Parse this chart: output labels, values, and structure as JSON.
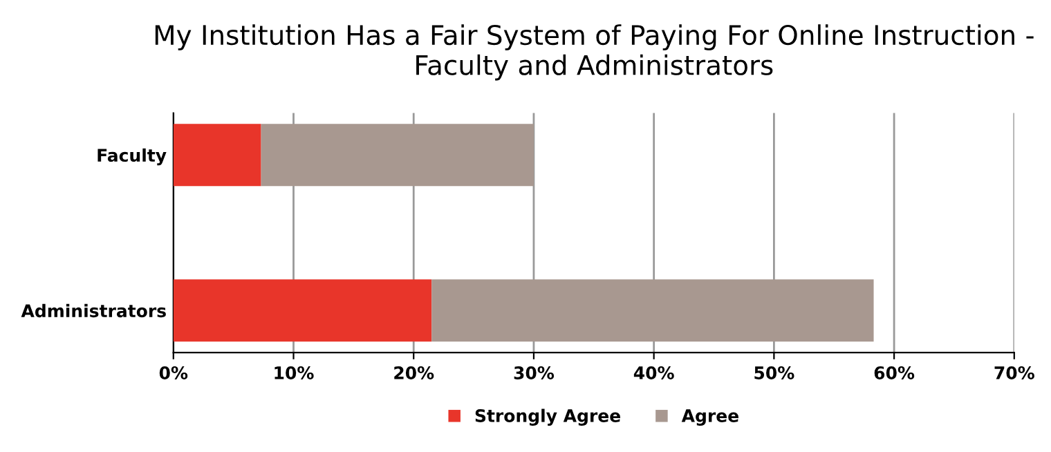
{
  "chart_data": {
    "type": "bar",
    "orientation": "horizontal",
    "stacked": true,
    "title": "My Institution Has a Fair System of Paying For Online Instruction - Faculty and Administrators",
    "categories": [
      "Faculty",
      "Administrators"
    ],
    "series": [
      {
        "name": "Strongly Agree",
        "color": "#e8352a",
        "values": [
          7.3,
          21.5
        ]
      },
      {
        "name": "Agree",
        "color": "#a89890",
        "values": [
          22.7,
          36.8
        ]
      }
    ],
    "xlim": [
      0,
      70
    ],
    "xticks": [
      {
        "value": 0,
        "label": "0%"
      },
      {
        "value": 10,
        "label": "10%"
      },
      {
        "value": 20,
        "label": "20%"
      },
      {
        "value": 30,
        "label": "30%"
      },
      {
        "value": 40,
        "label": "40%"
      },
      {
        "value": 50,
        "label": "50%"
      },
      {
        "value": 60,
        "label": "60%"
      },
      {
        "value": 70,
        "label": "70%"
      }
    ],
    "grid": "x",
    "legend": "bottom"
  }
}
